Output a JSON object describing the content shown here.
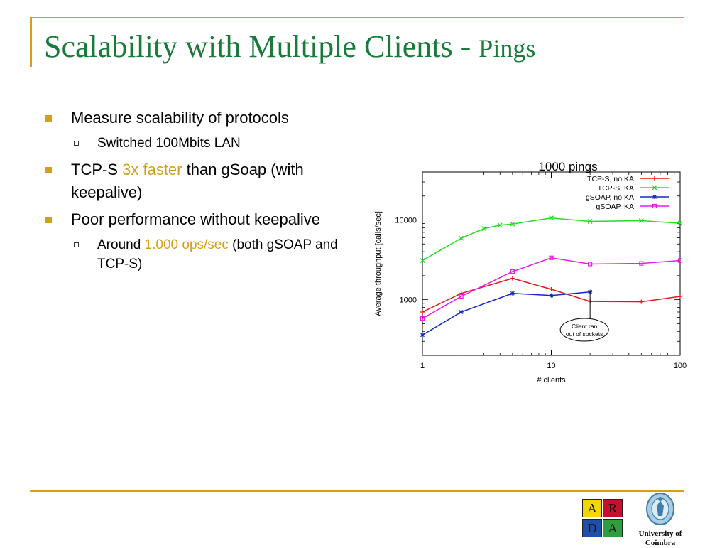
{
  "slide": {
    "title_main": "Scalability with Multiple Clients - ",
    "title_sub": "Pings"
  },
  "bullets": {
    "b1": "Measure scalability of protocols",
    "b1_sub": "Switched 100Mbits LAN",
    "b2_pre": "TCP-S ",
    "b2_hl": "3x faster",
    "b2_post": " than gSoap (with keepalive)",
    "b3": "Poor performance without keepalive",
    "b3_sub_pre": "Around ",
    "b3_sub_hl": "1.000 ops/sec",
    "b3_sub_post": " (both gSOAP and TCP-S)"
  },
  "chart_data": {
    "type": "line",
    "title": "1000 pings",
    "xlabel": "# clients",
    "ylabel": "Average throughput [calls/sec]",
    "x_scale": "log",
    "y_scale": "log",
    "xlim": [
      1,
      100
    ],
    "ylim": [
      200,
      40000
    ],
    "xticks": [
      1,
      10,
      100
    ],
    "xtick_labels": [
      "1",
      "10",
      "100"
    ],
    "yticks": [
      1000,
      10000
    ],
    "ytick_labels": [
      "1000",
      "10000"
    ],
    "grid": false,
    "legend_position": "top-right",
    "annotation": {
      "text_line1": "Client ran",
      "text_line2": "out of sockets",
      "target": {
        "x": 20,
        "y": 1250
      }
    },
    "series": [
      {
        "name": "TCP-S, no KA",
        "color": "#e8141c",
        "marker": "+",
        "x": [
          1,
          2,
          5,
          10,
          20,
          50,
          100
        ],
        "y": [
          700,
          1200,
          1850,
          1350,
          950,
          940,
          1100
        ]
      },
      {
        "name": "TCP-S, KA",
        "color": "#22dd22",
        "marker": "x",
        "x": [
          1,
          2,
          3,
          4,
          5,
          10,
          20,
          50,
          100
        ],
        "y": [
          3100,
          5900,
          7800,
          8600,
          8900,
          10600,
          9600,
          9800,
          9100
        ]
      },
      {
        "name": "gSOAP, no KA",
        "color": "#1428c8",
        "marker": "*",
        "x": [
          1,
          2,
          5,
          10,
          20
        ],
        "y": [
          360,
          700,
          1200,
          1130,
          1250
        ]
      },
      {
        "name": "gSOAP, KA",
        "color": "#e81ce8",
        "marker": "square",
        "x": [
          1,
          2,
          5,
          10,
          20,
          50,
          100
        ],
        "y": [
          580,
          1100,
          2250,
          3350,
          2800,
          2850,
          3100
        ]
      }
    ]
  },
  "logo": {
    "letters": [
      "A",
      "R",
      "D",
      "A"
    ],
    "colors": [
      "#f2d600",
      "#c8102e",
      "#1f4fa8",
      "#2e9e3e"
    ]
  },
  "university": {
    "line1": "University of",
    "line2": "Coimbra"
  }
}
